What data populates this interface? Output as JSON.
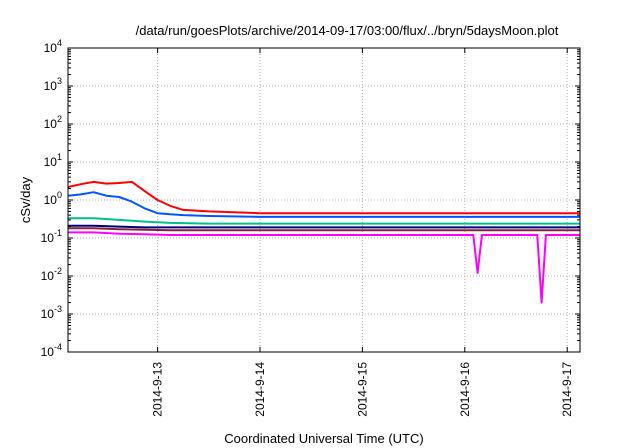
{
  "chart_data": {
    "type": "line",
    "title": "/data/run/goesPlots/archive/2014-09-17/03:00/flux/../bryn/5daysMoon.plot",
    "xlabel": "Coordinated Universal Time (UTC)",
    "ylabel": "cSv/day",
    "yscale": "log",
    "ylim": [
      0.0001,
      10000
    ],
    "xlim": [
      "2014-09-12T03:00",
      "2014-09-17T03:00"
    ],
    "grid": true,
    "legend": "none",
    "y_ticks": [
      {
        "base": "10",
        "exp": "-4",
        "value": 0.0001
      },
      {
        "base": "10",
        "exp": "-3",
        "value": 0.001
      },
      {
        "base": "10",
        "exp": "-2",
        "value": 0.01
      },
      {
        "base": "10",
        "exp": "-1",
        "value": 0.1
      },
      {
        "base": "10",
        "exp": "0",
        "value": 1
      },
      {
        "base": "10",
        "exp": "1",
        "value": 10
      },
      {
        "base": "10",
        "exp": "2",
        "value": 100
      },
      {
        "base": "10",
        "exp": "3",
        "value": 1000
      },
      {
        "base": "10",
        "exp": "4",
        "value": 10000
      }
    ],
    "x_ticks": [
      {
        "label": "2014-9-13",
        "value": "2014-09-13T00:00"
      },
      {
        "label": "2014-9-14",
        "value": "2014-09-14T00:00"
      },
      {
        "label": "2014-9-15",
        "value": "2014-09-15T00:00"
      },
      {
        "label": "2014-9-16",
        "value": "2014-09-16T00:00"
      },
      {
        "label": "2014-9-17",
        "value": "2014-09-17T00:00"
      }
    ],
    "series": [
      {
        "color": "#ff0000",
        "x": [
          "2014-09-12T03:00",
          "2014-09-12T06:00",
          "2014-09-12T09:00",
          "2014-09-12T12:00",
          "2014-09-12T15:00",
          "2014-09-12T18:00",
          "2014-09-12T21:00",
          "2014-09-13T00:00",
          "2014-09-13T03:00",
          "2014-09-13T06:00",
          "2014-09-13T12:00",
          "2014-09-14T00:00",
          "2014-09-14T12:00",
          "2014-09-15T00:00",
          "2014-09-15T12:00",
          "2014-09-16T00:00",
          "2014-09-16T12:00",
          "2014-09-16T21:00",
          "2014-09-17T00:00",
          "2014-09-17T03:00"
        ],
        "values": [
          2.2,
          2.6,
          3.0,
          2.7,
          2.8,
          3.0,
          1.7,
          1.0,
          0.7,
          0.55,
          0.5,
          0.45,
          0.45,
          0.45,
          0.45,
          0.45,
          0.45,
          0.45,
          0.45,
          0.45
        ]
      },
      {
        "color": "#0055ff",
        "x": [
          "2014-09-12T03:00",
          "2014-09-12T06:00",
          "2014-09-12T09:00",
          "2014-09-12T12:00",
          "2014-09-12T15:00",
          "2014-09-12T18:00",
          "2014-09-12T21:00",
          "2014-09-13T00:00",
          "2014-09-13T03:00",
          "2014-09-13T06:00",
          "2014-09-13T12:00",
          "2014-09-14T00:00",
          "2014-09-14T12:00",
          "2014-09-15T00:00",
          "2014-09-15T12:00",
          "2014-09-16T00:00",
          "2014-09-16T12:00",
          "2014-09-16T21:00",
          "2014-09-17T00:00",
          "2014-09-17T03:00"
        ],
        "values": [
          1.3,
          1.4,
          1.6,
          1.3,
          1.2,
          0.9,
          0.6,
          0.45,
          0.42,
          0.4,
          0.38,
          0.36,
          0.36,
          0.36,
          0.36,
          0.36,
          0.36,
          0.36,
          0.36,
          0.36
        ]
      },
      {
        "color": "#00c08b",
        "x": [
          "2014-09-12T03:00",
          "2014-09-12T09:00",
          "2014-09-12T15:00",
          "2014-09-12T21:00",
          "2014-09-13T03:00",
          "2014-09-13T12:00",
          "2014-09-14T00:00",
          "2014-09-14T12:00",
          "2014-09-15T00:00",
          "2014-09-15T12:00",
          "2014-09-16T00:00",
          "2014-09-16T12:00",
          "2014-09-16T21:00",
          "2014-09-17T00:00",
          "2014-09-17T03:00"
        ],
        "values": [
          0.33,
          0.33,
          0.3,
          0.27,
          0.25,
          0.24,
          0.24,
          0.24,
          0.24,
          0.24,
          0.24,
          0.24,
          0.24,
          0.24,
          0.24
        ]
      },
      {
        "color": "#000080",
        "x": [
          "2014-09-12T03:00",
          "2014-09-12T09:00",
          "2014-09-12T15:00",
          "2014-09-12T21:00",
          "2014-09-13T03:00",
          "2014-09-13T12:00",
          "2014-09-14T00:00",
          "2014-09-14T12:00",
          "2014-09-15T00:00",
          "2014-09-15T12:00",
          "2014-09-16T00:00",
          "2014-09-16T12:00",
          "2014-09-16T21:00",
          "2014-09-17T00:00",
          "2014-09-17T03:00"
        ],
        "values": [
          0.21,
          0.21,
          0.2,
          0.19,
          0.19,
          0.19,
          0.19,
          0.19,
          0.19,
          0.19,
          0.19,
          0.19,
          0.19,
          0.19,
          0.19
        ]
      },
      {
        "color": "#8a1f3c",
        "x": [
          "2014-09-12T03:00",
          "2014-09-12T09:00",
          "2014-09-12T15:00",
          "2014-09-12T21:00",
          "2014-09-13T03:00",
          "2014-09-13T12:00",
          "2014-09-14T00:00",
          "2014-09-14T12:00",
          "2014-09-15T00:00",
          "2014-09-15T12:00",
          "2014-09-16T00:00",
          "2014-09-16T12:00",
          "2014-09-16T21:00",
          "2014-09-17T00:00",
          "2014-09-17T03:00"
        ],
        "values": [
          0.18,
          0.18,
          0.17,
          0.165,
          0.16,
          0.16,
          0.16,
          0.16,
          0.16,
          0.16,
          0.16,
          0.16,
          0.16,
          0.16,
          0.16
        ]
      },
      {
        "color": "#ff00ff",
        "x": [
          "2014-09-12T03:00",
          "2014-09-12T09:00",
          "2014-09-12T15:00",
          "2014-09-12T21:00",
          "2014-09-13T03:00",
          "2014-09-13T12:00",
          "2014-09-14T00:00",
          "2014-09-14T12:00",
          "2014-09-15T00:00",
          "2014-09-15T12:00",
          "2014-09-16T00:00",
          "2014-09-16T02:00",
          "2014-09-16T03:00",
          "2014-09-16T04:00",
          "2014-09-16T12:00",
          "2014-09-16T17:00",
          "2014-09-16T18:00",
          "2014-09-16T19:00",
          "2014-09-17T00:00",
          "2014-09-17T03:00"
        ],
        "values": [
          0.14,
          0.14,
          0.13,
          0.125,
          0.12,
          0.12,
          0.12,
          0.12,
          0.12,
          0.12,
          0.12,
          0.12,
          0.012,
          0.12,
          0.12,
          0.12,
          0.002,
          0.12,
          0.12,
          0.12
        ]
      }
    ]
  }
}
